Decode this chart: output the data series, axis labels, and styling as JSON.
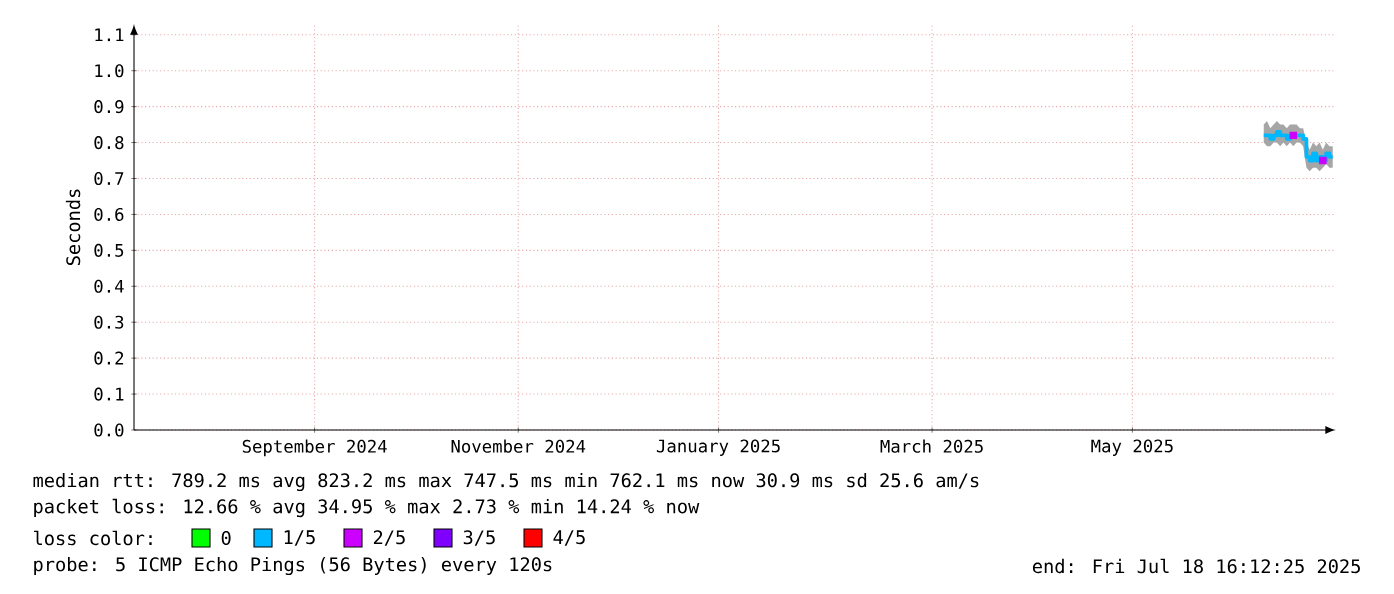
{
  "chart_data": {
    "type": "step",
    "ylabel": "Seconds",
    "xlim": [
      "2024-07-18",
      "2025-07-19"
    ],
    "xticks": [
      {
        "value": "2024-09-11",
        "label": "September 2024"
      },
      {
        "value": "2024-11-12",
        "label": "November 2024"
      },
      {
        "value": "2025-01-12",
        "label": "January 2025"
      },
      {
        "value": "2025-03-18",
        "label": "March 2025"
      },
      {
        "value": "2025-05-18",
        "label": "May 2025"
      }
    ],
    "ylim": [
      0,
      1.13
    ],
    "yticks": [
      {
        "value": 0,
        "label": "0.0"
      },
      {
        "value": 0.1,
        "label": "0.1"
      },
      {
        "value": 0.2,
        "label": "0.2"
      },
      {
        "value": 0.3,
        "label": "0.3"
      },
      {
        "value": 0.4,
        "label": "0.4"
      },
      {
        "value": 0.5,
        "label": "0.5"
      },
      {
        "value": 0.6,
        "label": "0.6"
      },
      {
        "value": 0.7,
        "label": "0.7"
      },
      {
        "value": 0.8,
        "label": "0.8"
      },
      {
        "value": 0.9,
        "label": "0.9"
      },
      {
        "value": 1.0,
        "label": "1.0"
      },
      {
        "value": 1.1,
        "label": "1.1"
      }
    ],
    "grid": true,
    "legend": "bottom",
    "legend_title": "loss color:",
    "series": [
      {
        "name": "0",
        "color": "#00ff00"
      },
      {
        "name": "1/5",
        "color": "#00b8ff",
        "x": [
          "2025-06-27",
          "2025-06-28",
          "2025-06-29",
          "2025-06-30",
          "2025-07-01",
          "2025-07-02",
          "2025-07-03",
          "2025-07-04",
          "2025-07-05",
          "2025-07-06",
          "2025-07-07",
          "2025-07-08",
          "2025-07-09",
          "2025-07-10",
          "2025-07-11",
          "2025-07-12",
          "2025-07-13",
          "2025-07-14",
          "2025-07-15",
          "2025-07-16",
          "2025-07-17",
          "2025-07-18"
        ],
        "values": [
          0.82,
          0.82,
          0.81,
          0.82,
          0.83,
          0.82,
          0.82,
          0.81,
          0.82,
          0.82,
          0.82,
          0.82,
          0.81,
          0.76,
          0.75,
          0.77,
          0.75,
          0.76,
          0.75,
          0.77,
          0.76,
          0.76
        ],
        "lower": [
          0.8,
          0.79,
          0.79,
          0.8,
          0.8,
          0.79,
          0.8,
          0.79,
          0.8,
          0.79,
          0.8,
          0.8,
          0.79,
          0.73,
          0.72,
          0.73,
          0.73,
          0.72,
          0.73,
          0.74,
          0.73,
          0.73
        ],
        "upper": [
          0.85,
          0.86,
          0.84,
          0.85,
          0.86,
          0.85,
          0.85,
          0.84,
          0.85,
          0.85,
          0.85,
          0.84,
          0.84,
          0.8,
          0.78,
          0.8,
          0.79,
          0.8,
          0.78,
          0.8,
          0.79,
          0.79
        ]
      },
      {
        "name": "2/5",
        "color": "#cc00ff",
        "type": "scatter",
        "x": [
          "2025-07-06",
          "2025-07-15"
        ],
        "values": [
          0.82,
          0.75
        ]
      },
      {
        "name": "3/5",
        "color": "#7f00ff"
      },
      {
        "name": "4/5",
        "color": "#ff0000"
      }
    ],
    "annotations": [
      "median rtt:  789.2 ms avg  823.2 ms max  747.5 ms min  762.1 ms now  30.9 ms sd  25.6   am/s",
      "packet loss: 12.66 % avg  34.95 % max  2.73 % min  14.24 % now",
      "probe:       5 ICMP Echo Pings (56 Bytes) every 120s",
      "end: Fri Jul 18 16:12:25 2025"
    ]
  }
}
